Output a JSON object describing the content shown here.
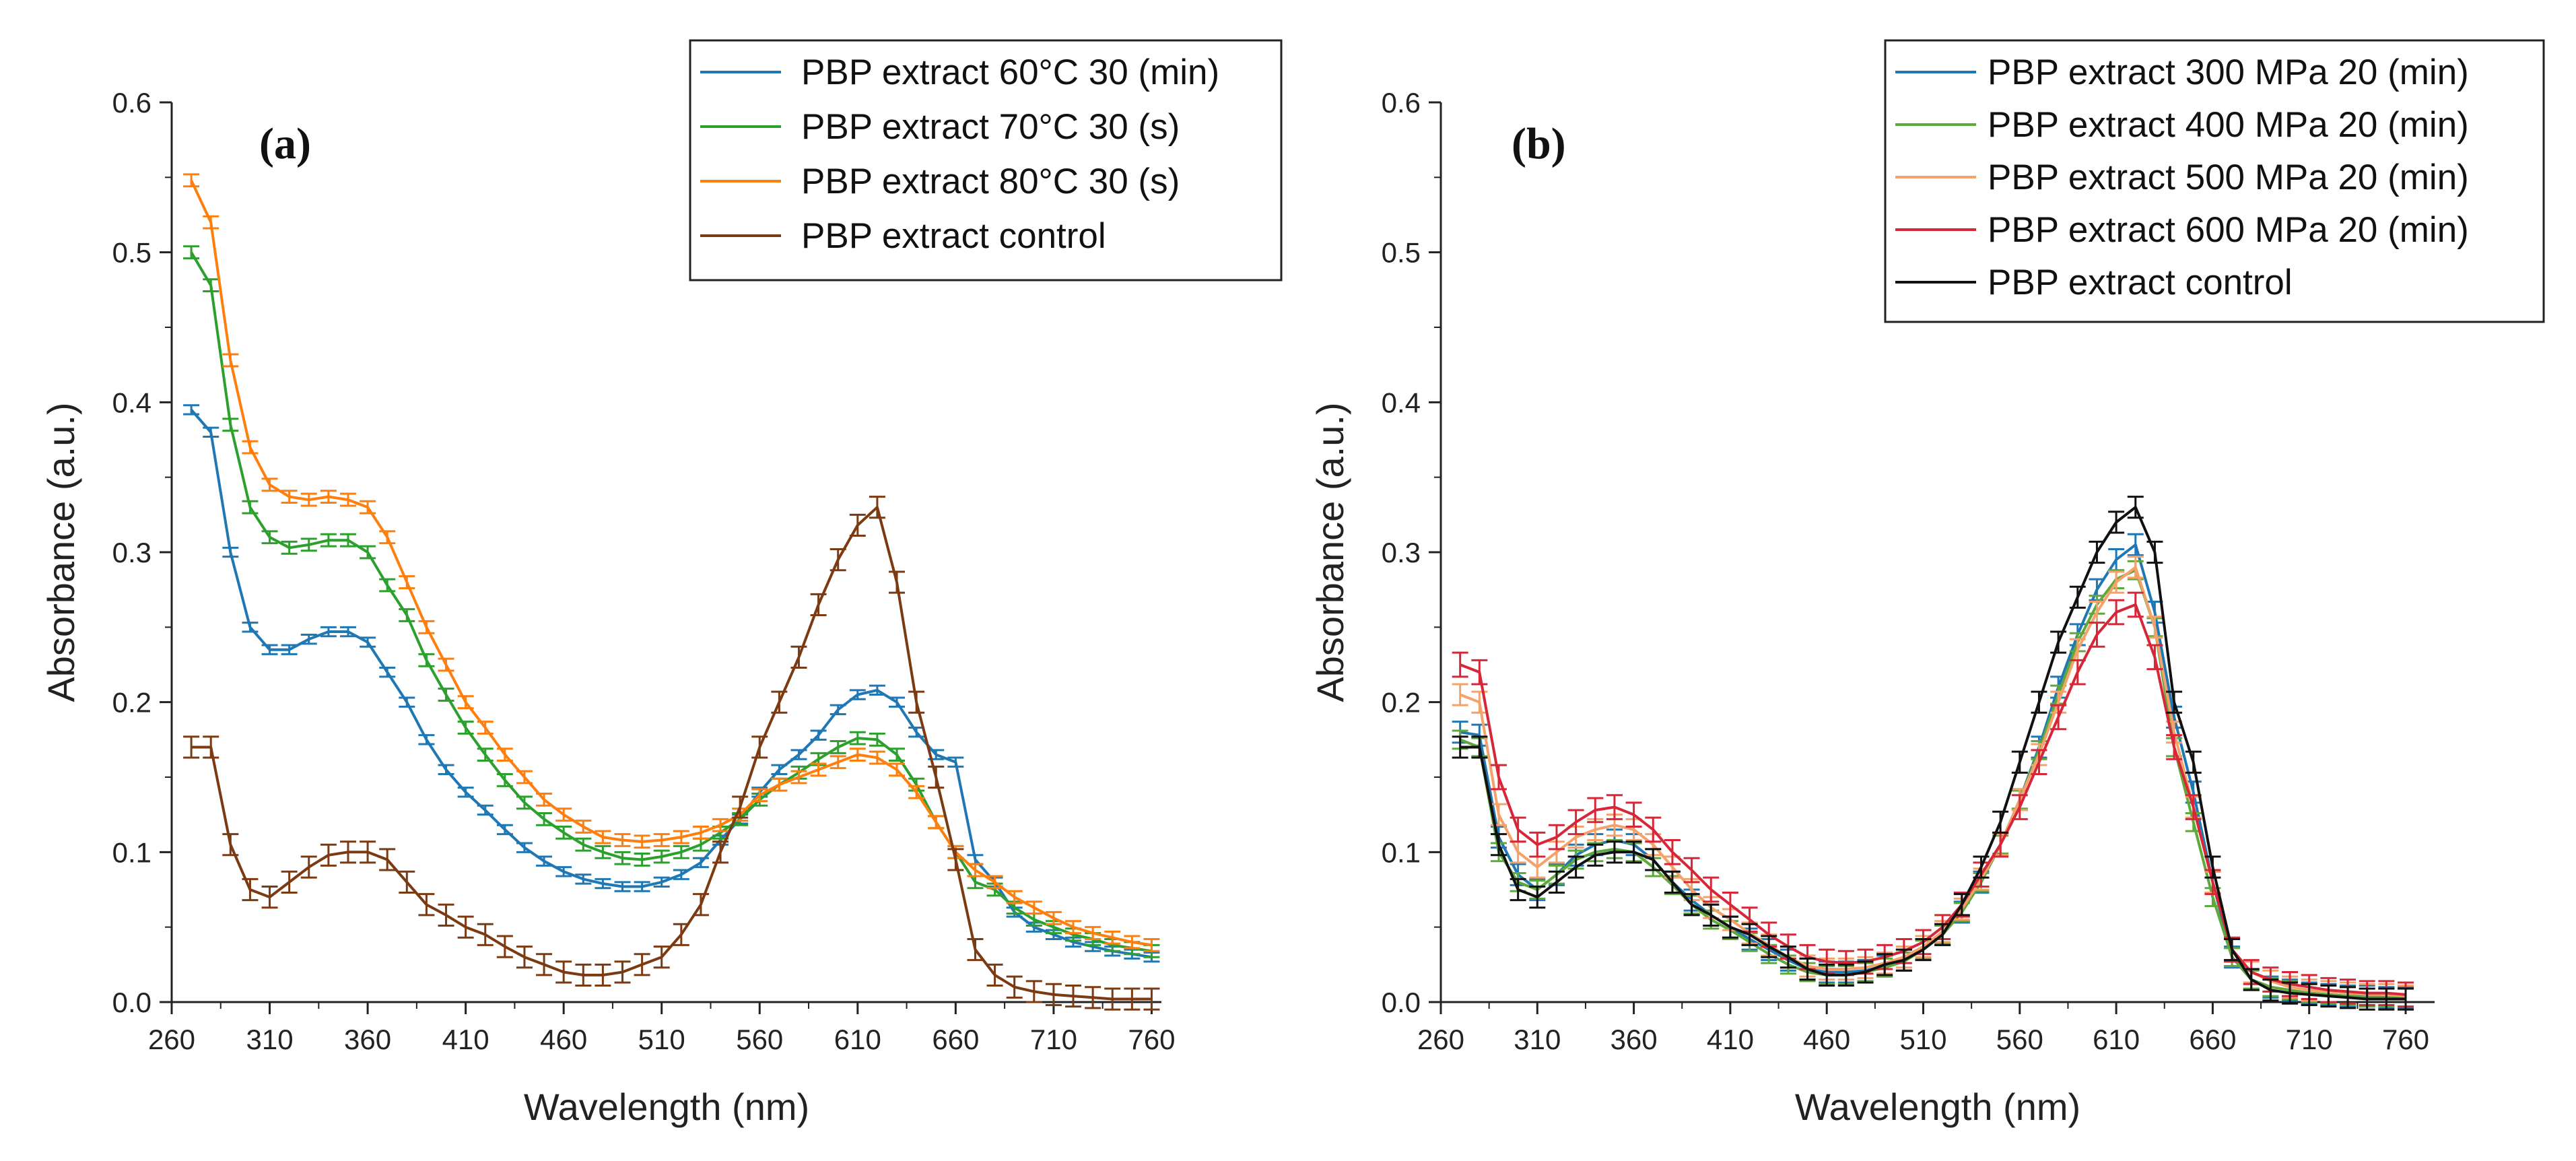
{
  "chart_data": [
    {
      "type": "line",
      "panel_label": "(a)",
      "xlabel": "Wavelength (nm)",
      "ylabel": "Absorbance (a.u.)",
      "xlim": [
        260,
        765
      ],
      "ylim": [
        0,
        0.6
      ],
      "xticks": [
        260,
        310,
        360,
        410,
        460,
        510,
        560,
        610,
        660,
        710,
        760
      ],
      "yticks": [
        0.0,
        0.1,
        0.2,
        0.3,
        0.4,
        0.5,
        0.6
      ],
      "ytick_labels": [
        "0.0",
        "0.1",
        "0.2",
        "0.3",
        "0.4",
        "0.5",
        "0.6"
      ],
      "legend_position": "top-right",
      "x": [
        270,
        280,
        290,
        300,
        310,
        320,
        330,
        340,
        350,
        360,
        370,
        380,
        390,
        400,
        410,
        420,
        430,
        440,
        450,
        460,
        470,
        480,
        490,
        500,
        510,
        520,
        530,
        540,
        550,
        560,
        570,
        580,
        590,
        600,
        610,
        620,
        630,
        640,
        650,
        660,
        670,
        680,
        690,
        700,
        710,
        720,
        730,
        740,
        750,
        760
      ],
      "series": [
        {
          "name": "PBP extract 60°C 30 (min)",
          "color": "#1f77b4",
          "err": 0.003,
          "values": [
            0.395,
            0.38,
            0.3,
            0.25,
            0.235,
            0.235,
            0.242,
            0.247,
            0.247,
            0.24,
            0.22,
            0.2,
            0.175,
            0.155,
            0.14,
            0.128,
            0.115,
            0.103,
            0.094,
            0.087,
            0.082,
            0.079,
            0.077,
            0.077,
            0.08,
            0.085,
            0.093,
            0.108,
            0.122,
            0.14,
            0.155,
            0.165,
            0.178,
            0.195,
            0.205,
            0.208,
            0.2,
            0.18,
            0.165,
            0.16,
            0.095,
            0.08,
            0.06,
            0.05,
            0.045,
            0.04,
            0.037,
            0.034,
            0.032,
            0.03
          ]
        },
        {
          "name": "PBP extract 70°C 30 (s)",
          "color": "#2ca02c",
          "err": 0.004,
          "values": [
            0.5,
            0.478,
            0.385,
            0.33,
            0.31,
            0.303,
            0.305,
            0.308,
            0.308,
            0.3,
            0.278,
            0.258,
            0.228,
            0.205,
            0.183,
            0.165,
            0.148,
            0.133,
            0.122,
            0.113,
            0.105,
            0.1,
            0.096,
            0.095,
            0.097,
            0.1,
            0.105,
            0.113,
            0.122,
            0.135,
            0.145,
            0.153,
            0.162,
            0.17,
            0.176,
            0.175,
            0.165,
            0.145,
            0.12,
            0.1,
            0.08,
            0.075,
            0.063,
            0.055,
            0.05,
            0.045,
            0.042,
            0.038,
            0.036,
            0.034
          ]
        },
        {
          "name": "PBP extract 80°C 30 (s)",
          "color": "#ff7f0e",
          "err": 0.004,
          "values": [
            0.548,
            0.52,
            0.428,
            0.37,
            0.345,
            0.337,
            0.335,
            0.337,
            0.335,
            0.33,
            0.31,
            0.28,
            0.25,
            0.225,
            0.2,
            0.183,
            0.165,
            0.15,
            0.135,
            0.125,
            0.117,
            0.11,
            0.108,
            0.107,
            0.108,
            0.11,
            0.113,
            0.118,
            0.125,
            0.138,
            0.145,
            0.15,
            0.155,
            0.16,
            0.165,
            0.163,
            0.155,
            0.14,
            0.12,
            0.1,
            0.088,
            0.08,
            0.07,
            0.063,
            0.056,
            0.05,
            0.046,
            0.043,
            0.04,
            0.038
          ]
        },
        {
          "name": "PBP extract control",
          "color": "#7b3a12",
          "err": 0.007,
          "values": [
            0.17,
            0.17,
            0.105,
            0.075,
            0.07,
            0.08,
            0.09,
            0.098,
            0.1,
            0.1,
            0.095,
            0.08,
            0.065,
            0.058,
            0.05,
            0.045,
            0.037,
            0.03,
            0.025,
            0.02,
            0.018,
            0.018,
            0.02,
            0.025,
            0.03,
            0.045,
            0.065,
            0.1,
            0.13,
            0.17,
            0.2,
            0.23,
            0.265,
            0.295,
            0.318,
            0.33,
            0.28,
            0.2,
            0.15,
            0.095,
            0.035,
            0.018,
            0.01,
            0.007,
            0.005,
            0.004,
            0.003,
            0.002,
            0.002,
            0.002
          ]
        }
      ]
    },
    {
      "type": "line",
      "panel_label": "(b)",
      "xlabel": "Wavelength (nm)",
      "ylabel": "Absorbance (a.u.)",
      "xlim": [
        260,
        775
      ],
      "ylim": [
        0,
        0.6
      ],
      "xticks": [
        260,
        310,
        360,
        410,
        460,
        510,
        560,
        610,
        660,
        710,
        760
      ],
      "yticks": [
        0.0,
        0.1,
        0.2,
        0.3,
        0.4,
        0.5,
        0.6
      ],
      "ytick_labels": [
        "0.0",
        "0.1",
        "0.2",
        "0.3",
        "0.4",
        "0.5",
        "0.6"
      ],
      "legend_position": "top-right",
      "x": [
        270,
        280,
        290,
        300,
        310,
        320,
        330,
        340,
        350,
        360,
        370,
        380,
        390,
        400,
        410,
        420,
        430,
        440,
        450,
        460,
        470,
        480,
        490,
        500,
        510,
        520,
        530,
        540,
        550,
        560,
        570,
        580,
        590,
        600,
        610,
        620,
        630,
        640,
        650,
        660,
        670,
        680,
        690,
        700,
        710,
        720,
        730,
        740,
        750,
        760
      ],
      "series": [
        {
          "name": "PBP extract 300 MPa 20 (min)",
          "color": "#1f77b4",
          "err": 0.007,
          "values": [
            0.18,
            0.178,
            0.11,
            0.085,
            0.075,
            0.085,
            0.098,
            0.105,
            0.108,
            0.105,
            0.095,
            0.08,
            0.068,
            0.058,
            0.05,
            0.042,
            0.035,
            0.028,
            0.022,
            0.02,
            0.02,
            0.021,
            0.024,
            0.028,
            0.035,
            0.045,
            0.06,
            0.08,
            0.105,
            0.135,
            0.17,
            0.21,
            0.245,
            0.275,
            0.295,
            0.305,
            0.26,
            0.19,
            0.14,
            0.08,
            0.03,
            0.015,
            0.01,
            0.008,
            0.006,
            0.005,
            0.004,
            0.004,
            0.003,
            0.003
          ]
        },
        {
          "name": "PBP extract 400 MPa 20 (min)",
          "color": "#5fa83a",
          "err": 0.006,
          "values": [
            0.175,
            0.17,
            0.1,
            0.08,
            0.075,
            0.085,
            0.095,
            0.1,
            0.102,
            0.1,
            0.09,
            0.078,
            0.065,
            0.055,
            0.048,
            0.04,
            0.032,
            0.025,
            0.02,
            0.018,
            0.018,
            0.02,
            0.023,
            0.027,
            0.035,
            0.045,
            0.06,
            0.08,
            0.105,
            0.135,
            0.168,
            0.205,
            0.24,
            0.265,
            0.282,
            0.288,
            0.25,
            0.17,
            0.12,
            0.07,
            0.03,
            0.015,
            0.01,
            0.008,
            0.006,
            0.005,
            0.004,
            0.003,
            0.003,
            0.003
          ]
        },
        {
          "name": "PBP extract 500 MPa 20 (min)",
          "color": "#f4a26a",
          "err": 0.007,
          "values": [
            0.205,
            0.2,
            0.125,
            0.1,
            0.09,
            0.1,
            0.11,
            0.115,
            0.118,
            0.115,
            0.105,
            0.09,
            0.075,
            0.063,
            0.055,
            0.046,
            0.038,
            0.03,
            0.024,
            0.022,
            0.022,
            0.023,
            0.026,
            0.03,
            0.037,
            0.047,
            0.062,
            0.082,
            0.105,
            0.135,
            0.165,
            0.2,
            0.235,
            0.26,
            0.28,
            0.29,
            0.25,
            0.18,
            0.13,
            0.08,
            0.035,
            0.02,
            0.014,
            0.01,
            0.008,
            0.007,
            0.006,
            0.005,
            0.005,
            0.004
          ]
        },
        {
          "name": "PBP extract 600 MPa 20 (min)",
          "color": "#d62739",
          "err": 0.008,
          "values": [
            0.225,
            0.22,
            0.15,
            0.115,
            0.105,
            0.11,
            0.12,
            0.128,
            0.13,
            0.125,
            0.115,
            0.1,
            0.088,
            0.075,
            0.065,
            0.055,
            0.045,
            0.037,
            0.03,
            0.027,
            0.026,
            0.027,
            0.03,
            0.034,
            0.04,
            0.05,
            0.065,
            0.085,
            0.105,
            0.13,
            0.16,
            0.19,
            0.22,
            0.245,
            0.26,
            0.265,
            0.23,
            0.17,
            0.13,
            0.08,
            0.035,
            0.02,
            0.015,
            0.012,
            0.01,
            0.008,
            0.007,
            0.006,
            0.006,
            0.005
          ]
        },
        {
          "name": "PBP extract control",
          "color": "#111111",
          "err": 0.007,
          "values": [
            0.17,
            0.17,
            0.105,
            0.075,
            0.07,
            0.08,
            0.09,
            0.098,
            0.1,
            0.1,
            0.095,
            0.08,
            0.065,
            0.058,
            0.05,
            0.045,
            0.037,
            0.03,
            0.022,
            0.018,
            0.018,
            0.02,
            0.025,
            0.028,
            0.035,
            0.045,
            0.065,
            0.09,
            0.12,
            0.16,
            0.2,
            0.24,
            0.27,
            0.3,
            0.32,
            0.33,
            0.3,
            0.2,
            0.16,
            0.09,
            0.035,
            0.015,
            0.008,
            0.006,
            0.005,
            0.004,
            0.003,
            0.002,
            0.002,
            0.002
          ]
        }
      ]
    }
  ]
}
